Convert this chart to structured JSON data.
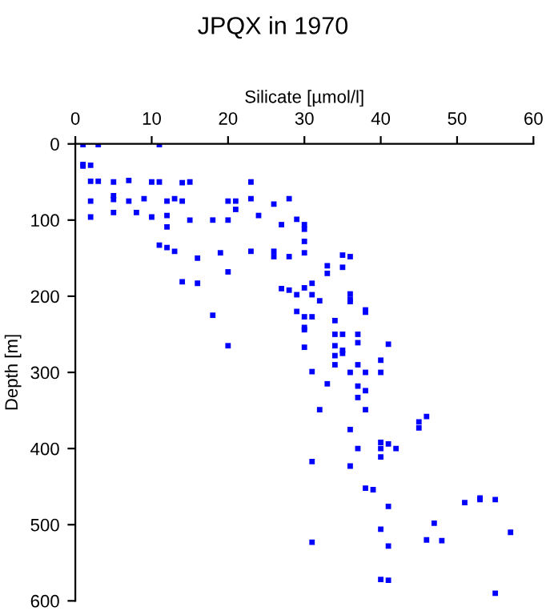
{
  "chart_data": {
    "type": "scatter",
    "title": "JPQX in 1970",
    "xlabel": "Silicate [µmol/l]",
    "ylabel": "Depth [m]",
    "xlim": [
      0,
      60
    ],
    "xticks": [
      0,
      10,
      20,
      30,
      40,
      50,
      60
    ],
    "ylim": [
      600,
      0
    ],
    "yticks": [
      0,
      100,
      200,
      300,
      400,
      500,
      600
    ],
    "marker": "square",
    "grid": false,
    "legend": false,
    "series": [
      {
        "color": "#0000ff",
        "x": [
          1,
          3,
          11,
          1,
          1,
          2,
          2,
          3,
          5,
          7,
          10,
          11,
          14,
          15,
          23,
          2,
          5,
          5,
          7,
          9,
          12,
          13,
          14,
          20,
          21,
          23,
          21,
          26,
          28,
          2,
          5,
          8,
          10,
          12,
          15,
          18,
          20,
          24,
          27,
          29,
          30,
          30,
          12,
          11,
          12,
          13,
          16,
          19,
          23,
          26,
          26,
          28,
          30,
          30,
          35,
          36,
          33,
          35,
          33,
          20,
          14,
          16,
          27,
          28,
          30,
          31,
          29,
          31,
          32,
          36,
          36,
          36,
          38,
          38,
          18,
          29,
          30,
          31,
          34,
          30,
          30,
          34,
          35,
          37,
          37,
          41,
          20,
          30,
          34,
          35,
          35,
          34,
          40,
          34,
          37,
          31,
          36,
          38,
          40,
          33,
          37,
          38,
          37,
          32,
          38,
          46,
          45,
          45,
          36,
          40,
          41,
          37,
          40,
          42,
          40,
          31,
          36,
          38,
          39,
          41,
          51,
          53,
          53,
          55,
          47,
          40,
          57,
          31,
          46,
          48,
          41,
          40,
          41,
          55
        ],
        "values": [
          1,
          1,
          1,
          27,
          29,
          28,
          49,
          49,
          50,
          48,
          50,
          50,
          51,
          50,
          50,
          75,
          68,
          73,
          75,
          72,
          75,
          72,
          75,
          75,
          75,
          72,
          86,
          79,
          72,
          96,
          90,
          90,
          96,
          94,
          100,
          100,
          100,
          94,
          106,
          99,
          106,
          112,
          109,
          133,
          136,
          141,
          150,
          143,
          141,
          141,
          148,
          148,
          128,
          143,
          146,
          148,
          160,
          162,
          170,
          168,
          181,
          183,
          190,
          192,
          189,
          183,
          198,
          198,
          206,
          197,
          204,
          207,
          218,
          221,
          225,
          220,
          227,
          227,
          232,
          241,
          244,
          250,
          250,
          250,
          261,
          263,
          265,
          267,
          265,
          271,
          275,
          278,
          284,
          290,
          290,
          299,
          300,
          300,
          300,
          315,
          318,
          324,
          333,
          349,
          349,
          358,
          365,
          373,
          375,
          392,
          394,
          400,
          400,
          400,
          411,
          417,
          423,
          452,
          454,
          476,
          471,
          465,
          467,
          467,
          498,
          506,
          510,
          523,
          520,
          521,
          528,
          572,
          573,
          590
        ]
      }
    ]
  }
}
